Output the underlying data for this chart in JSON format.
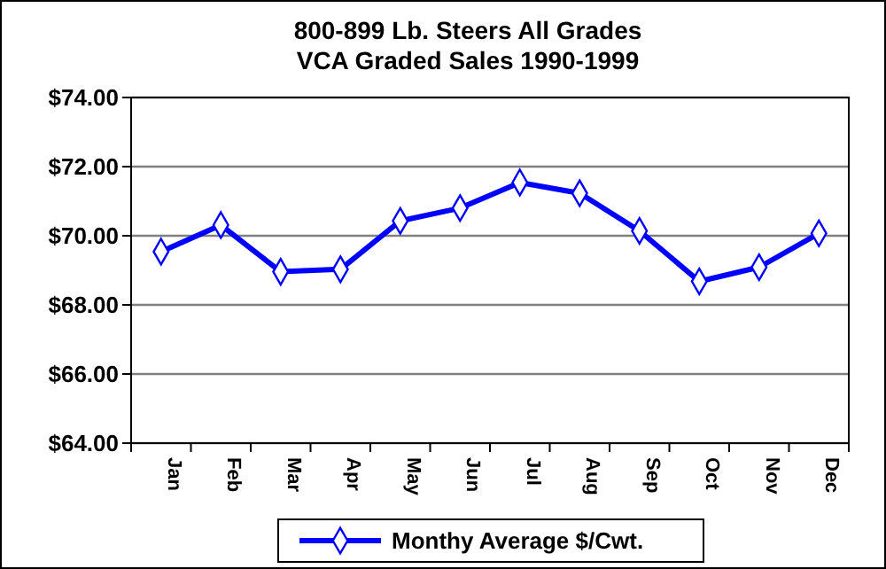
{
  "chart_data": {
    "type": "line",
    "title": "800-899 Lb. Steers All Grades\nVCA Graded Sales 1990-1999",
    "categories": [
      "Jan",
      "Feb",
      "Mar",
      "Apr",
      "May",
      "Jun",
      "Jul",
      "Aug",
      "Sep",
      "Oct",
      "Nov",
      "Dec"
    ],
    "series": [
      {
        "name": "Monthy Average $/Cwt.",
        "color": "#0000ff",
        "values": [
          69.54,
          70.31,
          68.96,
          69.03,
          70.43,
          70.8,
          71.54,
          71.23,
          70.14,
          68.68,
          69.09,
          70.07
        ]
      }
    ],
    "ylim": [
      64,
      74
    ],
    "yticks": [
      {
        "value": 64,
        "label": "$64.00"
      },
      {
        "value": 66,
        "label": "$66.00"
      },
      {
        "value": 68,
        "label": "$68.00"
      },
      {
        "value": 70,
        "label": "$70.00"
      },
      {
        "value": 72,
        "label": "$72.00"
      },
      {
        "value": 74,
        "label": "$74.00"
      }
    ],
    "grid": "y",
    "legend": "bottom",
    "marker": "diamond",
    "line_style": "solid"
  }
}
